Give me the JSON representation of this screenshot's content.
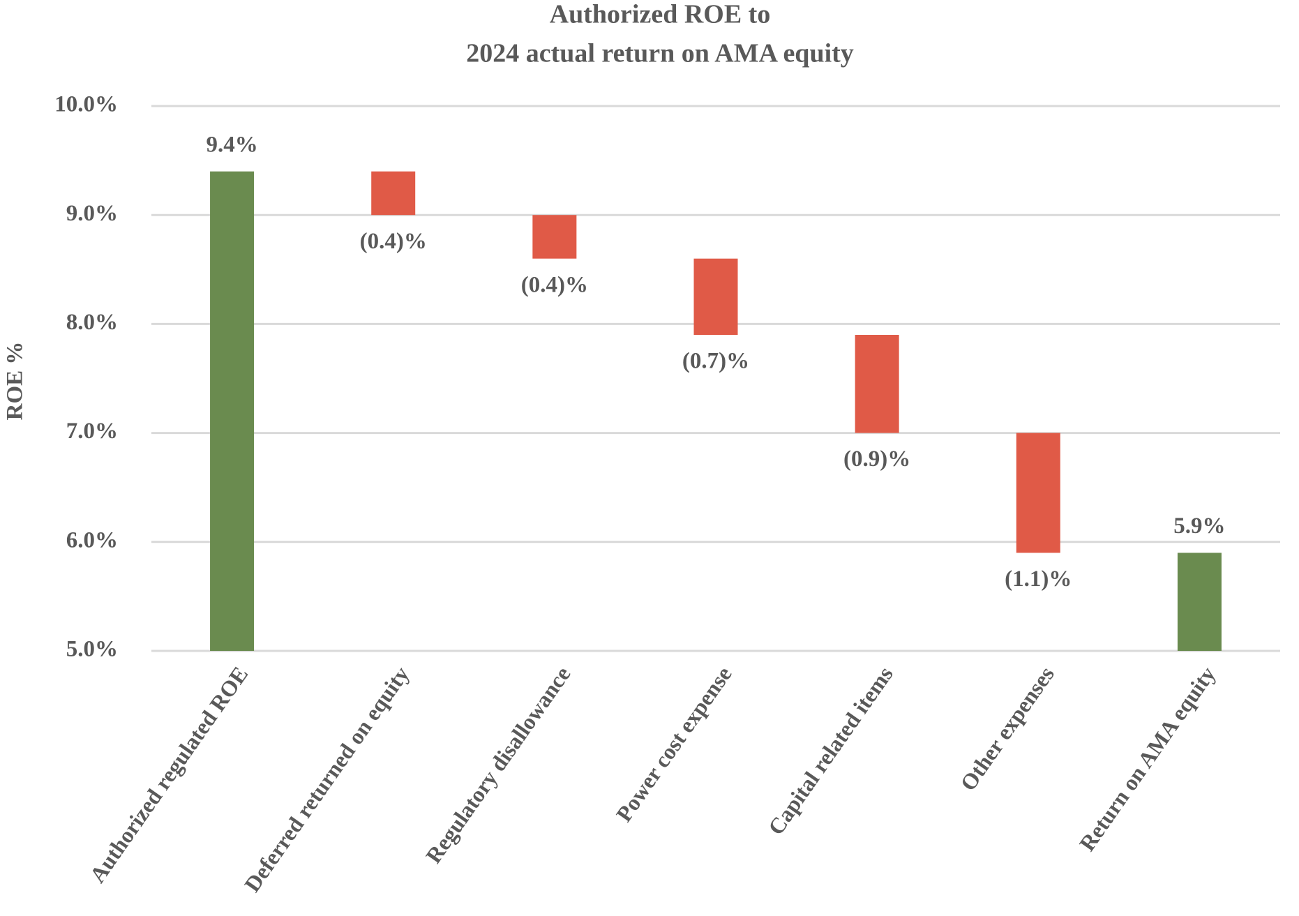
{
  "chart_data": {
    "type": "waterfall",
    "title": [
      "Authorized ROE to",
      "2024 actual return on AMA equity"
    ],
    "y_label": "ROE %",
    "categories": [
      "Authorized regulated ROE",
      "Deferred returned on equity",
      "Regulatory disallowance",
      "Power cost expense",
      "Capital related items",
      "Other expenses",
      "Return on AMA equity"
    ],
    "measure": [
      "absolute",
      "relative",
      "relative",
      "relative",
      "relative",
      "relative",
      "absolute"
    ],
    "values": [
      9.4,
      -0.4,
      -0.4,
      -0.7,
      -0.9,
      -1.1,
      5.9
    ],
    "value_labels": [
      "9.4%",
      "(0.4)%",
      "(0.4)%",
      "(0.7)%",
      "(0.9)%",
      "(1.1)%",
      "5.9%"
    ],
    "colors": {
      "absolute": "#6a8b4f",
      "decrease": "#e05a47"
    },
    "ylim": [
      5,
      10
    ],
    "yticks": [
      {
        "value": 5,
        "label": "5.0%"
      },
      {
        "value": 6,
        "label": "6.0%"
      },
      {
        "value": 7,
        "label": "7.0%"
      },
      {
        "value": 8,
        "label": "8.0%"
      },
      {
        "value": 9,
        "label": "9.0%"
      },
      {
        "value": 10,
        "label": "10.0%"
      }
    ],
    "grid": true
  }
}
